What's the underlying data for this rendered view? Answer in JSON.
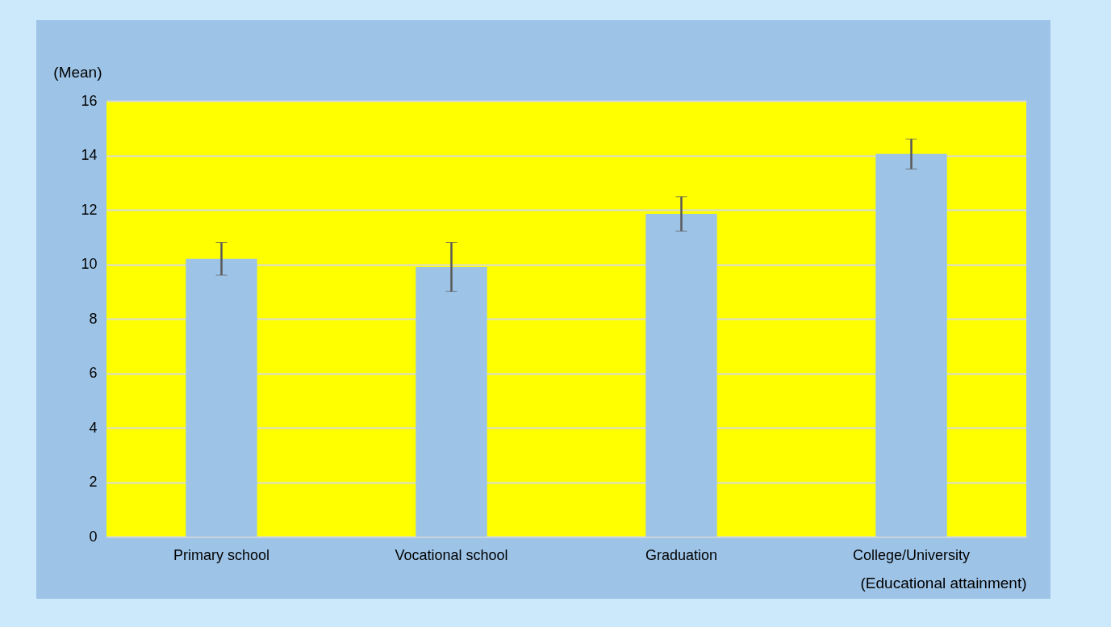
{
  "chart_data": {
    "type": "bar",
    "ylabel": "(Mean)",
    "xlabel": "(Educational attainment)",
    "categories": [
      "Primary school",
      "Vocational school",
      "Graduation",
      "College/University"
    ],
    "values": [
      10.2,
      9.9,
      11.85,
      14.05
    ],
    "errors": [
      0.6,
      0.9,
      0.63,
      0.55
    ],
    "color": "#9dc3e6",
    "ylim": [
      0,
      16
    ],
    "yticks": [
      0,
      2,
      4,
      6,
      8,
      10,
      12,
      14,
      16
    ],
    "grid": "y"
  }
}
